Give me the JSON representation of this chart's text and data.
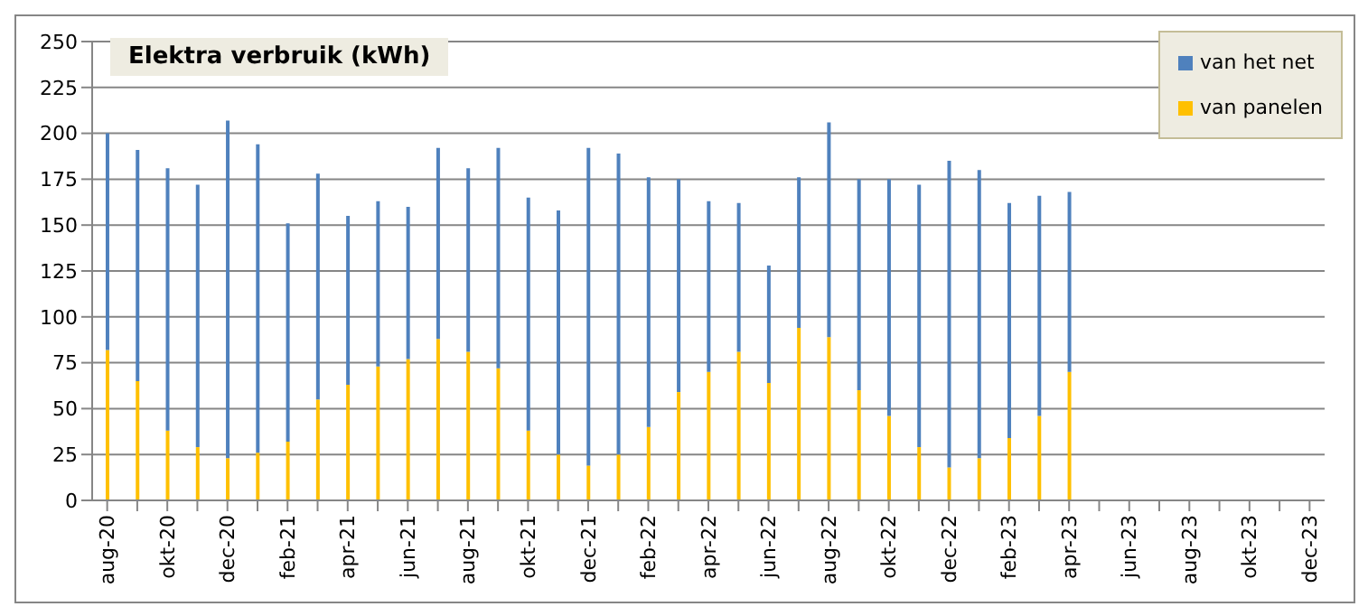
{
  "chart_data": {
    "type": "bar",
    "title": "Elektra verbruik (kWh)",
    "stacked": true,
    "grid": "y",
    "legend": "top right",
    "categories": [
      "aug-20",
      null,
      "okt-20",
      null,
      "dec-20",
      null,
      "feb-21",
      null,
      "apr-21",
      null,
      "jun-21",
      null,
      "aug-21",
      null,
      "okt-21",
      null,
      "dec-21",
      null,
      "feb-22",
      null,
      "apr-22",
      null,
      "jun-22",
      null,
      "aug-22",
      null,
      "okt-22",
      null,
      "dec-22",
      null,
      "feb-23",
      null,
      "apr-23",
      null,
      "jun-23",
      null,
      "aug-23",
      null,
      "okt-23",
      null,
      "dec-23"
    ],
    "series": [
      {
        "name": "van panelen",
        "color": "#ffc000",
        "values": [
          82,
          65,
          38,
          29,
          23,
          26,
          32,
          55,
          63,
          73,
          77,
          88,
          81,
          72,
          38,
          25,
          19,
          25,
          40,
          59,
          70,
          81,
          64,
          94,
          89,
          60,
          46,
          29,
          18,
          23,
          34,
          46,
          70,
          null,
          null,
          null,
          null,
          null,
          null,
          null,
          null
        ]
      },
      {
        "name": "van het net",
        "color": "#4f81bd",
        "values": [
          118,
          126,
          143,
          143,
          184,
          168,
          119,
          123,
          92,
          90,
          83,
          104,
          100,
          120,
          127,
          133,
          173,
          164,
          136,
          116,
          93,
          81,
          64,
          82,
          117,
          115,
          129,
          143,
          167,
          157,
          128,
          120,
          98,
          null,
          null,
          null,
          null,
          null,
          null,
          null,
          null
        ]
      }
    ],
    "ylim": [
      0,
      250
    ],
    "yticks": [
      0,
      25,
      50,
      75,
      100,
      125,
      150,
      175,
      200,
      225,
      250
    ]
  }
}
